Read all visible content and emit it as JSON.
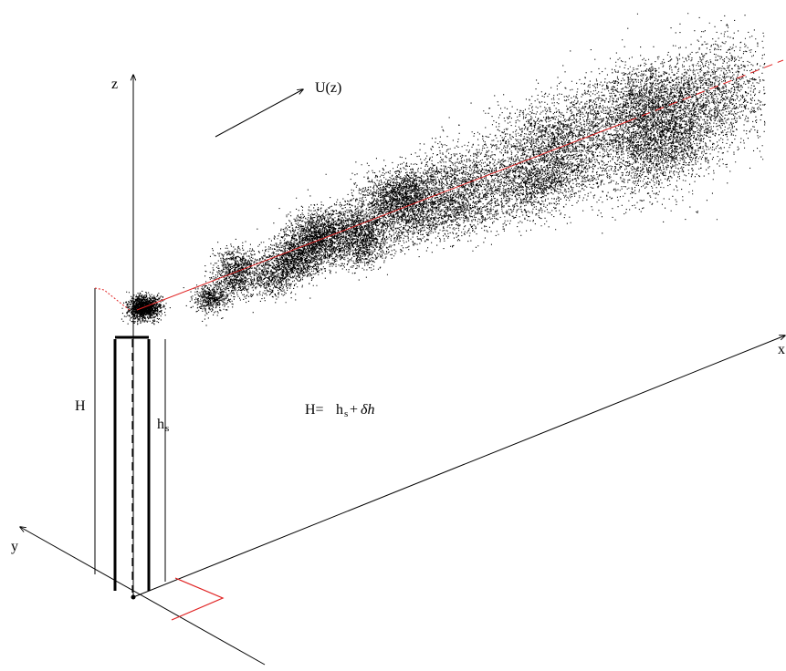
{
  "diagram": {
    "axes": {
      "z": "z",
      "y": "y",
      "x": "x"
    },
    "wind": {
      "label": "U(z)"
    },
    "stack": {
      "effective_height_label": "H",
      "stack_height_label": "h",
      "stack_height_subscript": "s"
    },
    "formula": {
      "lhs": "H=",
      "hs": "h",
      "hs_sub": "s",
      "plus": "+",
      "dh": "δh"
    },
    "colors": {
      "lines": "#000000",
      "plume": "#000000",
      "centerline": "#e02020"
    }
  }
}
